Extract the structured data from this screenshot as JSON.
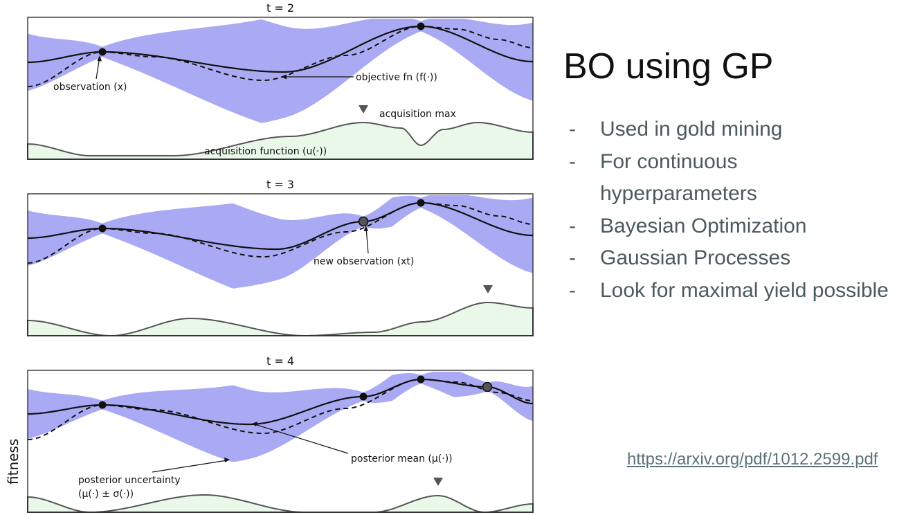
{
  "slide": {
    "title": "BO using GP",
    "bullets": [
      "Used in gold mining",
      "For continuous hyperparameters",
      "Bayesian Optimization",
      "Gaussian Processes",
      "Look for maximal yield possible"
    ],
    "link_text": "https://arxiv.org/pdf/1012.2599.pdf"
  },
  "figure": {
    "ylabel": "fitness",
    "colors": {
      "uncertainty": "#aaaaf4",
      "acquisition_fill": "#e9f8e9",
      "acquisition_line": "#555555",
      "mean": "#111111",
      "marker_new": "#555555"
    },
    "panels": [
      {
        "title": "t = 2",
        "annotations": [
          "observation (x)",
          "objective fn (f(·))",
          "acquisition max",
          "acquisition function (u(·))"
        ]
      },
      {
        "title": "t = 3",
        "annotations": [
          "new observation (xt)"
        ]
      },
      {
        "title": "t = 4",
        "annotations": [
          "posterior mean (μ(·))",
          "posterior uncertainty",
          "(μ(·) ± σ(·))"
        ]
      }
    ]
  }
}
